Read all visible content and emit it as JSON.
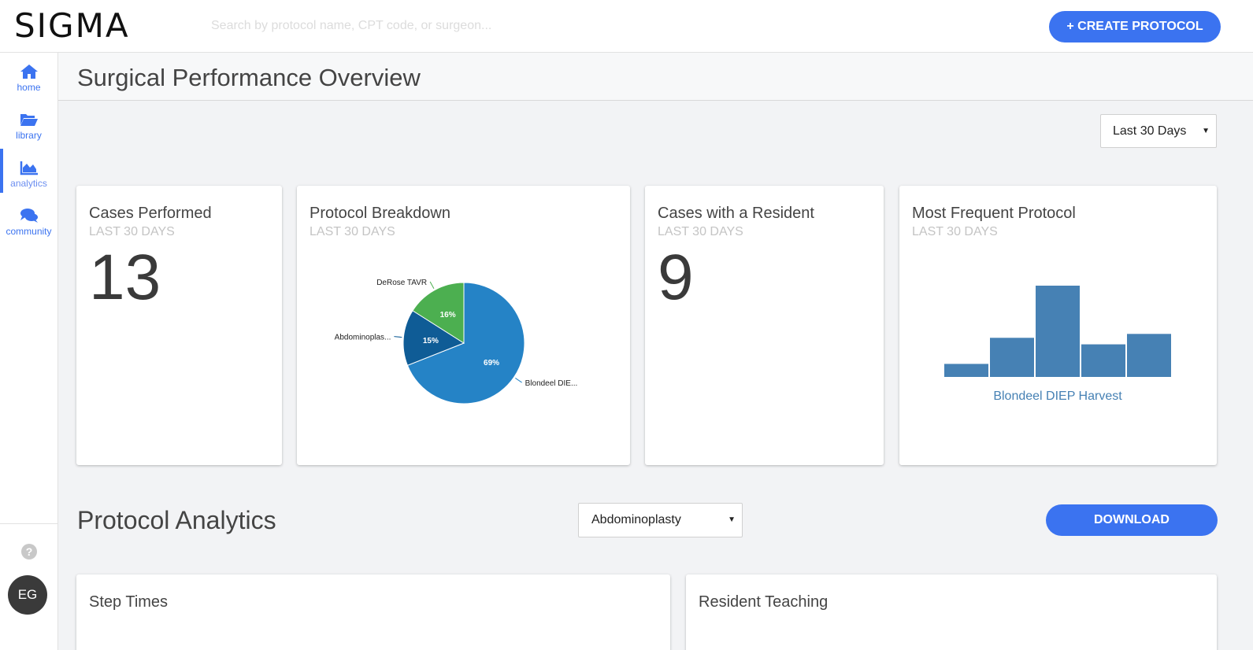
{
  "app": {
    "logo": "SIGMA",
    "search_placeholder": "Search by protocol name, CPT code, or surgeon...",
    "create_label": "+ CREATE PROTOCOL"
  },
  "sidebar": {
    "items": [
      {
        "label": "home",
        "icon": "home-icon"
      },
      {
        "label": "library",
        "icon": "folder-open-icon"
      },
      {
        "label": "analytics",
        "icon": "area-chart-icon",
        "active": true
      },
      {
        "label": "community",
        "icon": "comments-icon"
      }
    ],
    "help": "?",
    "avatar": "EG"
  },
  "page": {
    "title": "Surgical Performance Overview",
    "range": "Last 30 Days"
  },
  "cards": {
    "cases_performed": {
      "title": "Cases Performed",
      "sub": "LAST 30 DAYS",
      "value": "13"
    },
    "protocol_breakdown": {
      "title": "Protocol Breakdown",
      "sub": "LAST 30 DAYS"
    },
    "resident_cases": {
      "title": "Cases with a Resident",
      "sub": "LAST 30 DAYS",
      "value": "9"
    },
    "most_frequent": {
      "title": "Most Frequent Protocol",
      "sub": "LAST 30 DAYS",
      "protocol": "Blondeel DIEP Harvest"
    }
  },
  "analytics": {
    "title": "Protocol Analytics",
    "protocol": "Abdominoplasty",
    "download_label": "DOWNLOAD",
    "panels": [
      "Step Times",
      "Resident Teaching"
    ]
  },
  "colors": {
    "accent": "#3b73f0",
    "pie_blue": "#2583c6",
    "pie_dark": "#0f5c96",
    "pie_green": "#4caf50",
    "bar": "#4681b4"
  },
  "chart_data": [
    {
      "type": "pie",
      "slices": [
        {
          "label": "Blondeel DIE...",
          "value": 69,
          "display": "69%"
        },
        {
          "label": "Abdominoplas...",
          "value": 15,
          "display": "15%"
        },
        {
          "label": "DeRose TAVR",
          "value": 16,
          "display": "16%"
        }
      ]
    },
    {
      "type": "bar",
      "values": [
        1,
        3,
        7,
        2.5,
        3.3
      ],
      "xlabel": "Blondeel DIEP Harvest"
    }
  ]
}
